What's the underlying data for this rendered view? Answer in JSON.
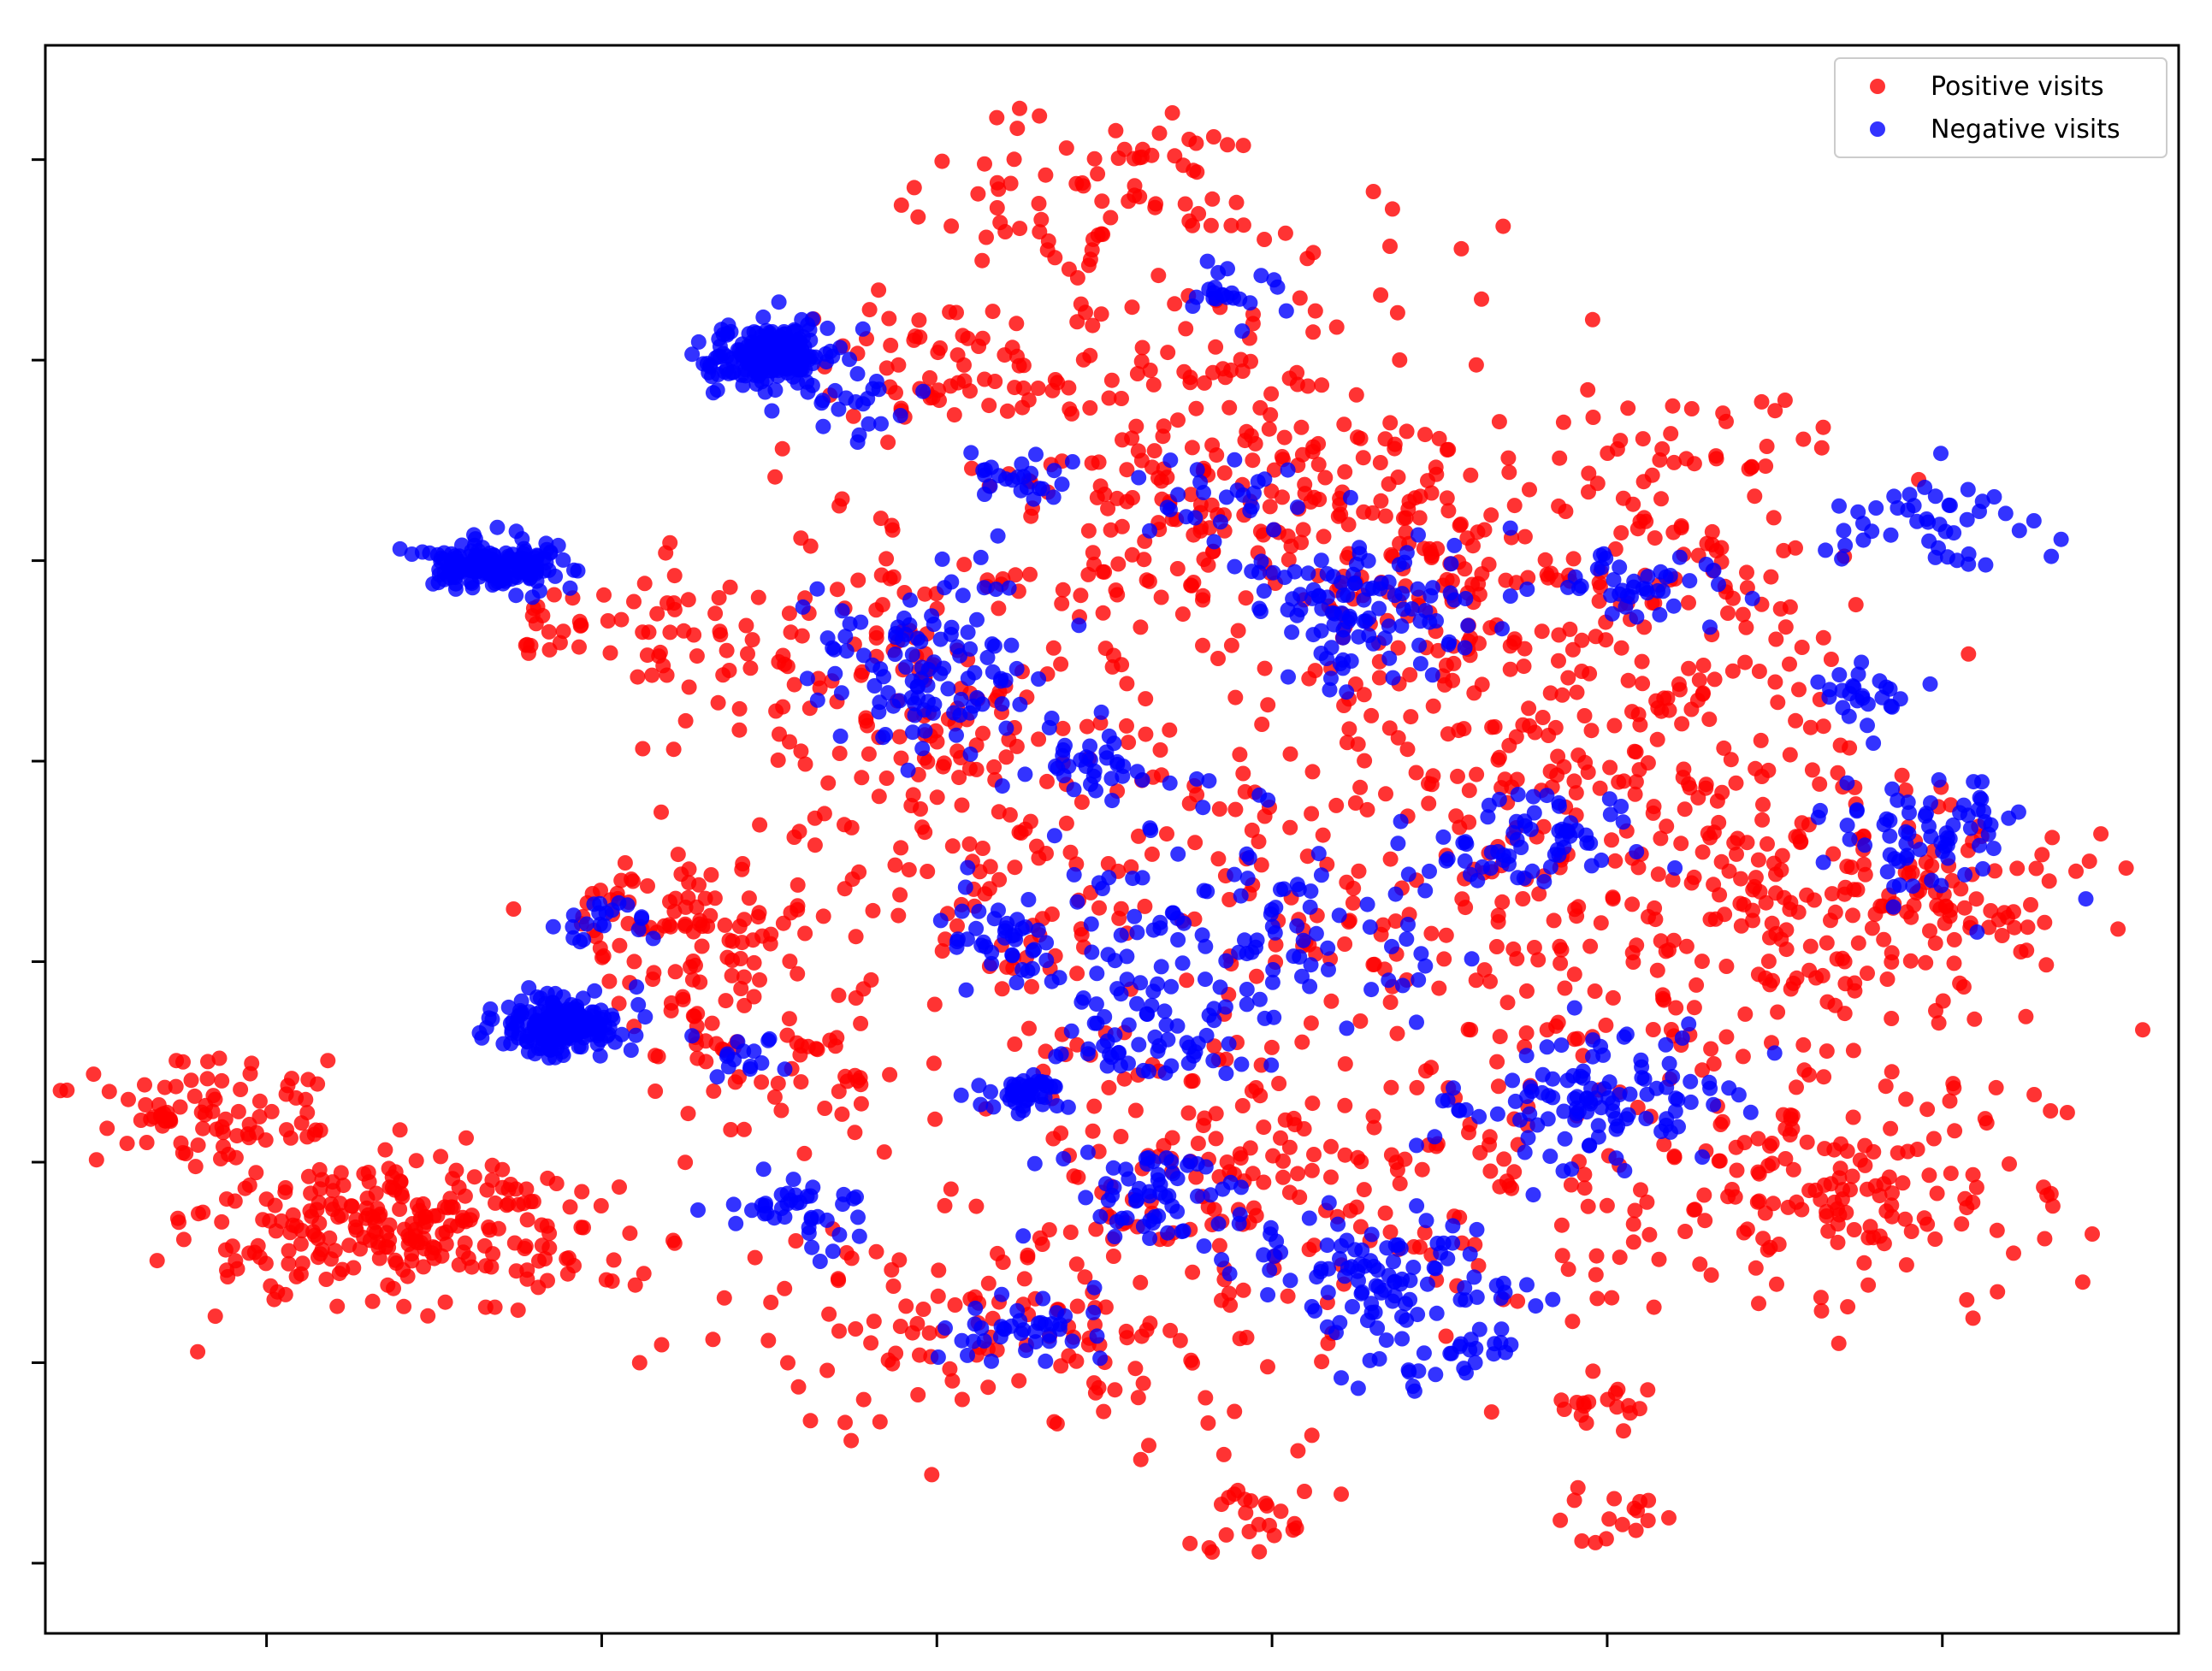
{
  "chart_data": {
    "type": "scatter",
    "title": "",
    "xlabel": "",
    "ylabel": "",
    "xticks": [
      -60,
      -40,
      -20,
      0,
      20,
      40
    ],
    "yticks": [
      -60,
      -40,
      -20,
      0,
      20,
      40,
      60,
      80
    ],
    "xlim": [
      -73.2,
      54.1
    ],
    "ylim": [
      -67.0,
      91.4
    ],
    "tick_labels_visible": false,
    "grid": false,
    "legend": {
      "placement": "top-right",
      "entries": [
        "Positive visits",
        "Negative visits"
      ]
    },
    "series": [
      {
        "name": "Positive visits",
        "color": "#ff0000",
        "clusters": [
          {
            "cx": -51.9,
            "cy": -27.2,
            "sx": 6.2,
            "sy": 3.9,
            "n": 260
          },
          {
            "cx": -64.2,
            "cy": -14.8,
            "sx": 3.6,
            "sy": 2.4,
            "n": 80
          },
          {
            "cx": -35.0,
            "cy": 5.0,
            "sx": 4.0,
            "sy": 3.0,
            "n": 70
          },
          {
            "cx": -33.0,
            "cy": -5.0,
            "sx": 3.0,
            "sy": 6.0,
            "n": 60
          },
          {
            "cx": -22.0,
            "cy": 27.0,
            "sx": 7.0,
            "sy": 9.0,
            "n": 160
          },
          {
            "cx": -6.0,
            "cy": 53.0,
            "sx": 8.0,
            "sy": 12.0,
            "n": 200
          },
          {
            "cx": -8.0,
            "cy": 78.0,
            "sx": 5.0,
            "sy": 4.0,
            "n": 60
          },
          {
            "cx": 5.0,
            "cy": 45.0,
            "sx": 9.0,
            "sy": 7.0,
            "n": 160
          },
          {
            "cx": 16.0,
            "cy": 30.0,
            "sx": 9.0,
            "sy": 10.0,
            "n": 180
          },
          {
            "cx": 12.0,
            "cy": 5.0,
            "sx": 12.0,
            "sy": 13.0,
            "n": 260
          },
          {
            "cx": 0.0,
            "cy": -22.0,
            "sx": 13.0,
            "sy": 9.0,
            "n": 220
          },
          {
            "cx": -14.0,
            "cy": -37.0,
            "sx": 8.0,
            "sy": 5.0,
            "n": 120
          },
          {
            "cx": 34.0,
            "cy": -22.0,
            "sx": 6.0,
            "sy": 6.0,
            "n": 160
          },
          {
            "cx": 35.0,
            "cy": 4.0,
            "sx": 6.0,
            "sy": 5.0,
            "n": 100
          },
          {
            "cx": 28.0,
            "cy": 13.0,
            "sx": 5.0,
            "sy": 8.0,
            "n": 80
          },
          {
            "cx": 20.0,
            "cy": -45.0,
            "sx": 2.0,
            "sy": 2.0,
            "n": 18
          },
          {
            "cx": 21.0,
            "cy": -56.0,
            "sx": 1.5,
            "sy": 1.5,
            "n": 16
          },
          {
            "cx": -0.5,
            "cy": -55.0,
            "sx": 2.0,
            "sy": 2.0,
            "n": 22
          },
          {
            "cx": -20.0,
            "cy": 60.0,
            "sx": 4.0,
            "sy": 3.5,
            "n": 50
          },
          {
            "cx": -36.0,
            "cy": 33.0,
            "sx": 3.0,
            "sy": 3.0,
            "n": 35
          },
          {
            "cx": -15.0,
            "cy": 9.0,
            "sx": 8.0,
            "sy": 8.0,
            "n": 90
          },
          {
            "cx": 43.0,
            "cy": 7.0,
            "sx": 4.0,
            "sy": 4.0,
            "n": 40
          },
          {
            "cx": -28.0,
            "cy": -10.0,
            "sx": 3.0,
            "sy": 2.5,
            "n": 30
          },
          {
            "cx": -42.0,
            "cy": 33.5,
            "sx": 2.0,
            "sy": 2.0,
            "n": 20
          },
          {
            "cx": 24.0,
            "cy": 46.0,
            "sx": 5.0,
            "sy": 6.0,
            "n": 60
          }
        ]
      },
      {
        "name": "Negative visits",
        "color": "#0000ff",
        "clusters": [
          {
            "cx": -30.0,
            "cy": 60.5,
            "sx": 1.9,
            "sy": 1.4,
            "n": 200
          },
          {
            "cx": -46.5,
            "cy": 39.5,
            "sx": 1.8,
            "sy": 1.2,
            "n": 190
          },
          {
            "cx": -42.5,
            "cy": -6.5,
            "sx": 2.0,
            "sy": 1.4,
            "n": 190
          },
          {
            "cx": 39.2,
            "cy": 43.2,
            "sx": 2.8,
            "sy": 2.6,
            "n": 45
          },
          {
            "cx": 39.0,
            "cy": 12.5,
            "sx": 2.8,
            "sy": 3.4,
            "n": 70
          },
          {
            "cx": -19.5,
            "cy": 29.0,
            "sx": 3.6,
            "sy": 4.5,
            "n": 110
          },
          {
            "cx": 5.4,
            "cy": 36.5,
            "sx": 3.8,
            "sy": 4.2,
            "n": 110
          },
          {
            "cx": 15.0,
            "cy": 12.5,
            "sx": 3.2,
            "sy": 2.6,
            "n": 60
          },
          {
            "cx": 21.0,
            "cy": -13.5,
            "sx": 3.2,
            "sy": 3.0,
            "n": 80
          },
          {
            "cx": 6.0,
            "cy": -31.0,
            "sx": 4.0,
            "sy": 3.2,
            "n": 90
          },
          {
            "cx": -6.0,
            "cy": -23.5,
            "sx": 3.2,
            "sy": 2.4,
            "n": 60
          },
          {
            "cx": -1.0,
            "cy": 5.0,
            "sx": 6.0,
            "sy": 6.0,
            "n": 110
          },
          {
            "cx": -8.0,
            "cy": -7.0,
            "sx": 3.2,
            "sy": 3.2,
            "n": 60
          },
          {
            "cx": -16.0,
            "cy": 2.0,
            "sx": 2.0,
            "sy": 3.0,
            "n": 40
          },
          {
            "cx": -28.0,
            "cy": -25.0,
            "sx": 2.0,
            "sy": 2.2,
            "n": 40
          },
          {
            "cx": -14.8,
            "cy": -13.0,
            "sx": 1.2,
            "sy": 0.9,
            "n": 45
          },
          {
            "cx": 22.0,
            "cy": 37.5,
            "sx": 2.6,
            "sy": 1.6,
            "n": 40
          },
          {
            "cx": 35.0,
            "cy": 27.0,
            "sx": 1.8,
            "sy": 1.4,
            "n": 25
          },
          {
            "cx": -2.0,
            "cy": 67.0,
            "sx": 1.5,
            "sy": 1.5,
            "n": 22
          },
          {
            "cx": -15.0,
            "cy": -37.0,
            "sx": 2.8,
            "sy": 1.6,
            "n": 40
          },
          {
            "cx": -11.0,
            "cy": 20.0,
            "sx": 2.2,
            "sy": 1.6,
            "n": 30
          },
          {
            "cx": -40.0,
            "cy": 4.0,
            "sx": 1.6,
            "sy": 1.3,
            "n": 20
          },
          {
            "cx": -15.0,
            "cy": 48.0,
            "sx": 2.0,
            "sy": 1.5,
            "n": 24
          },
          {
            "cx": -4.0,
            "cy": 46.0,
            "sx": 2.5,
            "sy": 2.0,
            "n": 22
          },
          {
            "cx": 10.0,
            "cy": -38.0,
            "sx": 3.0,
            "sy": 3.0,
            "n": 40
          },
          {
            "cx": -31.0,
            "cy": -9.0,
            "sx": 1.3,
            "sy": 1.3,
            "n": 14
          },
          {
            "cx": 14.0,
            "cy": -15.0,
            "sx": 3.0,
            "sy": 3.0,
            "n": 30
          },
          {
            "cx": -24.0,
            "cy": 55.0,
            "sx": 2.0,
            "sy": 1.5,
            "n": 18
          }
        ]
      }
    ]
  }
}
